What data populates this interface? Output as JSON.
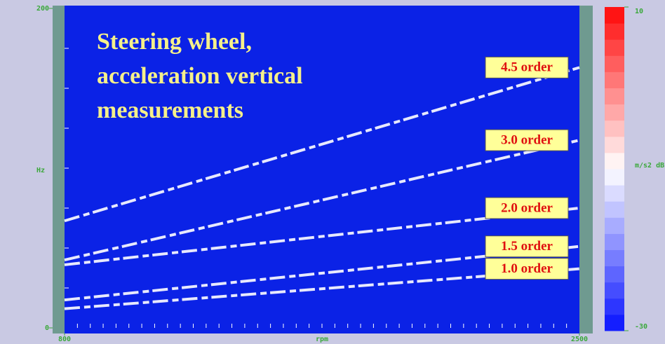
{
  "chart_data": {
    "type": "line",
    "title": [
      "Steering wheel,",
      "acceleration vertical",
      "measurements"
    ],
    "x": [
      800,
      2500
    ],
    "series": [
      {
        "name": "4.5 order",
        "color": "#ffffff",
        "values": [
          67,
          163
        ]
      },
      {
        "name": "3.0 order",
        "color": "#ffffff",
        "values": [
          42.5,
          117.5
        ]
      },
      {
        "name": "2.0 order",
        "color": "#ffffff",
        "values": [
          39.5,
          75
        ]
      },
      {
        "name": "1.5 order",
        "color": "#ffffff",
        "values": [
          17.5,
          51
        ]
      },
      {
        "name": "1.0 order",
        "color": "#ffffff",
        "values": [
          12,
          37
        ]
      }
    ],
    "xlim": [
      800,
      2500
    ],
    "xticks": [
      800,
      2500
    ],
    "xlabel": "rpm",
    "ylim": [
      0,
      200
    ],
    "yticks": [
      0,
      200
    ],
    "ylabel": "Hz",
    "colorbar": {
      "clim": [
        -30,
        10
      ],
      "ticks": [
        -30,
        10
      ],
      "label": "m/s2 dB"
    }
  }
}
